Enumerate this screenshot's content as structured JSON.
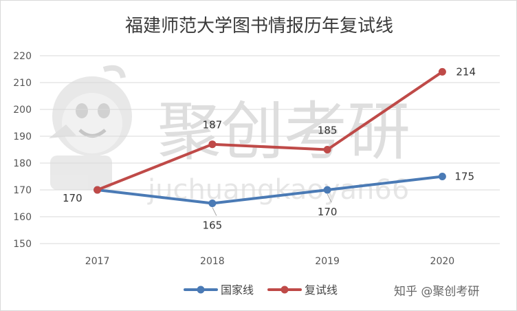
{
  "chart_data": {
    "type": "line",
    "title": "福建师范大学图书情报历年复试线",
    "x": [
      "2017",
      "2018",
      "2019",
      "2020"
    ],
    "ylim": [
      150,
      220
    ],
    "yticks": [
      150,
      160,
      170,
      180,
      190,
      200,
      210,
      220
    ],
    "grid": true,
    "legend_position": "bottom",
    "series": [
      {
        "name": "国家线",
        "values": [
          170,
          165,
          170,
          175
        ],
        "color": "#4a7ab5"
      },
      {
        "name": "复试线",
        "values": [
          170,
          187,
          185,
          214
        ],
        "color": "#bf4a48"
      }
    ]
  },
  "watermark": {
    "big_text": "聚创考研",
    "sub_text": "juchuangkaoyan66",
    "credit": "知乎 @聚创考研"
  }
}
